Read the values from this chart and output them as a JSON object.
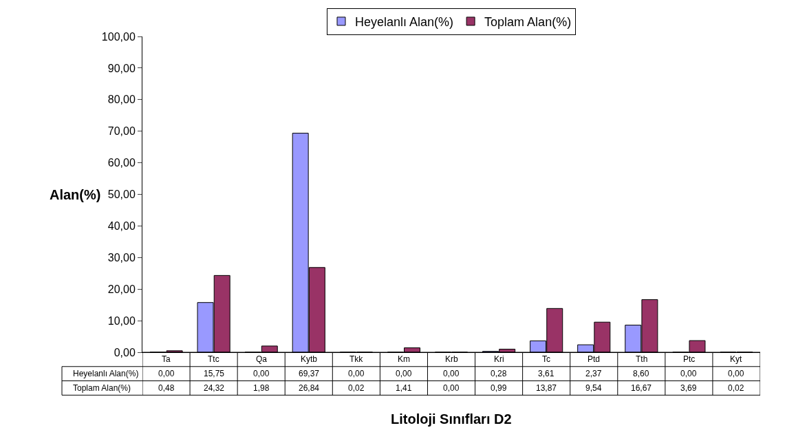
{
  "chart_data": {
    "type": "bar",
    "xlabel": "Litoloji Sınıfları D2",
    "ylabel": "Alan(%)",
    "categories": [
      "Ta",
      "Ttc",
      "Qa",
      "Kytb",
      "Tkk",
      "Km",
      "Krb",
      "Kri",
      "Tc",
      "Ptd",
      "Tth",
      "Ptc",
      "Kyt"
    ],
    "series": [
      {
        "name": "Heyelanlı Alan(%)",
        "color": "#9999ff",
        "values": [
          0.0,
          15.75,
          0.0,
          69.37,
          0.0,
          0.0,
          0.0,
          0.28,
          3.61,
          2.37,
          8.6,
          0.0,
          0.0
        ],
        "value_labels": [
          "0,00",
          "15,75",
          "0,00",
          "69,37",
          "0,00",
          "0,00",
          "0,00",
          "0,28",
          "3,61",
          "2,37",
          "8,60",
          "0,00",
          "0,00"
        ]
      },
      {
        "name": "Toplam Alan(%)",
        "color": "#993366",
        "values": [
          0.48,
          24.32,
          1.98,
          26.84,
          0.02,
          1.41,
          0.0,
          0.99,
          13.87,
          9.54,
          16.67,
          3.69,
          0.02
        ],
        "value_labels": [
          "0,48",
          "24,32",
          "1,98",
          "26,84",
          "0,02",
          "1,41",
          "0,00",
          "0,99",
          "13,87",
          "9,54",
          "16,67",
          "3,69",
          "0,02"
        ]
      }
    ],
    "ylim": [
      0,
      100
    ],
    "yticks": [
      {
        "value": 0,
        "label": "0,00"
      },
      {
        "value": 10,
        "label": "10,00"
      },
      {
        "value": 20,
        "label": "20,00"
      },
      {
        "value": 30,
        "label": "30,00"
      },
      {
        "value": 40,
        "label": "40,00"
      },
      {
        "value": 50,
        "label": "50,00"
      },
      {
        "value": 60,
        "label": "60,00"
      },
      {
        "value": 70,
        "label": "70,00"
      },
      {
        "value": 80,
        "label": "80,00"
      },
      {
        "value": 90,
        "label": "90,00"
      },
      {
        "value": 100,
        "label": "100,00"
      }
    ],
    "legend": "top",
    "grid": false
  }
}
